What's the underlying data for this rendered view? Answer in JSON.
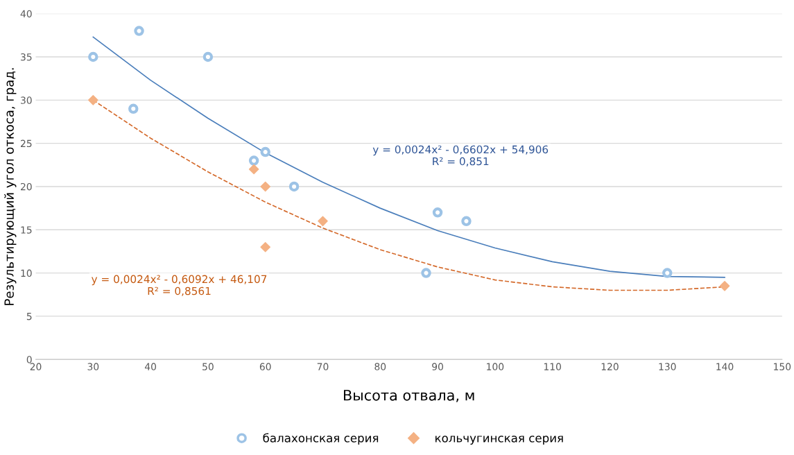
{
  "chart_data": {
    "type": "scatter",
    "xlabel": "Высота отвала, м",
    "ylabel": "Результирующий угол откоса, град.",
    "xlim": [
      20,
      150
    ],
    "xticks": [
      20,
      30,
      40,
      50,
      60,
      70,
      80,
      90,
      100,
      110,
      120,
      130,
      140,
      150
    ],
    "ylim": [
      0,
      40
    ],
    "yticks": [
      0,
      5,
      10,
      15,
      20,
      25,
      30,
      35,
      40
    ],
    "grid": "y",
    "legend": "bottom",
    "series": [
      {
        "name": "балахонская серия",
        "marker": "circle",
        "color": "#9dc3e6",
        "x": [
          30,
          38,
          50,
          37,
          58,
          60,
          65,
          90,
          95,
          88,
          130
        ],
        "values": [
          35,
          38,
          35,
          29,
          23,
          24,
          20,
          17,
          16,
          10,
          10
        ]
      },
      {
        "name": "кольчугинская серия",
        "marker": "diamond",
        "color": "#f4b183",
        "x": [
          30,
          58,
          60,
          70,
          60,
          140
        ],
        "values": [
          30,
          22,
          20,
          16,
          13,
          8.5
        ]
      },
      {
        "type": "line",
        "line_style": "solid",
        "color": "#4a7ebb",
        "x": [
          30,
          40,
          50,
          60,
          70,
          80,
          90,
          100,
          110,
          120,
          130,
          140
        ],
        "values": [
          37.3,
          32.3,
          27.9,
          23.9,
          20.5,
          17.5,
          14.9,
          12.9,
          11.3,
          10.2,
          9.6,
          9.5
        ]
      },
      {
        "type": "line",
        "line_style": "dashed",
        "color": "#d4692a",
        "x": [
          30,
          40,
          50,
          60,
          70,
          80,
          90,
          100,
          110,
          120,
          130,
          140
        ],
        "values": [
          30.0,
          25.6,
          21.7,
          18.2,
          15.2,
          12.7,
          10.7,
          9.2,
          8.4,
          8.0,
          8.0,
          8.4
        ]
      }
    ],
    "annotations": [
      "y = 0,0024x² - 0,6602x + 54,906\nR² = 0,851",
      "y = 0,0024x² - 0,6092x + 46,107\nR² = 0,8561"
    ]
  }
}
